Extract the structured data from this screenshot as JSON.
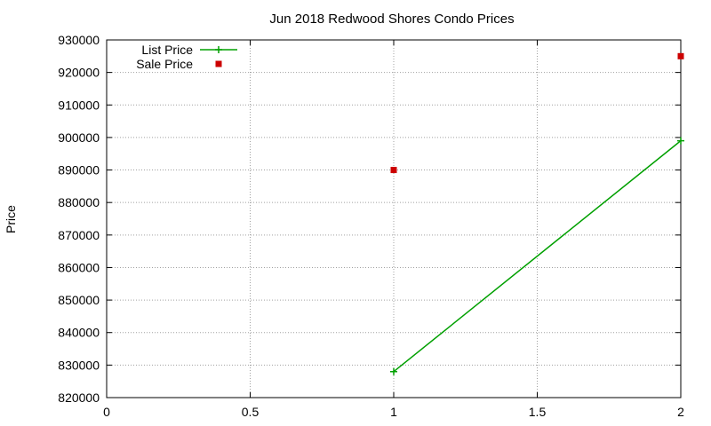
{
  "chart_data": {
    "type": "line",
    "title": "Jun 2018 Redwood Shores Condo Prices",
    "xlabel": "",
    "ylabel": "Price",
    "xlim": [
      0,
      2
    ],
    "ylim": [
      820000,
      930000
    ],
    "x_ticks": [
      0,
      0.5,
      1,
      1.5,
      2
    ],
    "x_tick_labels": [
      "0",
      "0.5",
      "1",
      "1.5",
      "2"
    ],
    "y_ticks": [
      820000,
      830000,
      840000,
      850000,
      860000,
      870000,
      880000,
      890000,
      900000,
      910000,
      920000,
      930000
    ],
    "y_tick_labels": [
      "820000",
      "830000",
      "840000",
      "850000",
      "860000",
      "870000",
      "880000",
      "890000",
      "900000",
      "910000",
      "920000",
      "930000"
    ],
    "grid": true,
    "legend_position": "top-left",
    "series": [
      {
        "name": "List Price",
        "style": "line+cross",
        "color": "#00a000",
        "x": [
          1,
          2
        ],
        "y": [
          828000,
          899000
        ]
      },
      {
        "name": "Sale Price",
        "style": "square",
        "color": "#cc0000",
        "x": [
          1,
          2
        ],
        "y": [
          890000,
          925000
        ]
      }
    ]
  }
}
